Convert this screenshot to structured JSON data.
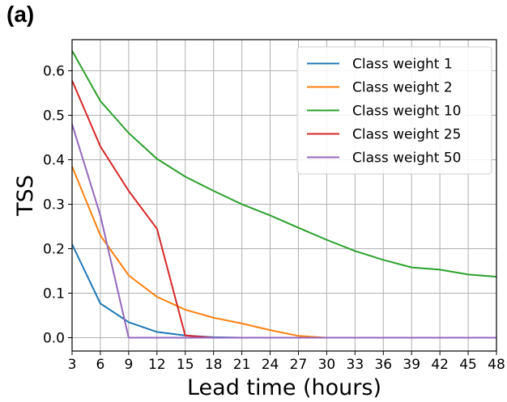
{
  "panel_label": "(a)",
  "chart_data": {
    "type": "line",
    "xlabel": "Lead time (hours)",
    "ylabel": "TSS",
    "x": [
      3,
      6,
      9,
      12,
      15,
      18,
      21,
      24,
      27,
      30,
      33,
      36,
      39,
      42,
      45,
      48
    ],
    "xlim": [
      3,
      48
    ],
    "ylim": [
      -0.03,
      0.67
    ],
    "xticks": [
      3,
      6,
      9,
      12,
      15,
      18,
      21,
      24,
      27,
      30,
      33,
      36,
      39,
      42,
      45,
      48
    ],
    "yticks": [
      0.0,
      0.1,
      0.2,
      0.3,
      0.4,
      0.5,
      0.6
    ],
    "ytick_labels": [
      "0.0",
      "0.1",
      "0.2",
      "0.3",
      "0.4",
      "0.5",
      "0.6"
    ],
    "grid": true,
    "legend_position": "top-right",
    "series": [
      {
        "name": "Class weight 1",
        "color": "#1f77b4",
        "values": [
          0.21,
          0.077,
          0.035,
          0.013,
          0.005,
          0.001,
          0,
          0,
          0,
          0,
          0,
          0,
          0,
          0,
          0,
          0
        ]
      },
      {
        "name": "Class weight 2",
        "color": "#ff7f0e",
        "values": [
          0.385,
          0.23,
          0.14,
          0.092,
          0.063,
          0.045,
          0.032,
          0.017,
          0.004,
          0,
          0,
          0,
          0,
          0,
          0,
          0
        ]
      },
      {
        "name": "Class weight 10",
        "color": "#2ca02c",
        "values": [
          0.645,
          0.532,
          0.46,
          0.402,
          0.362,
          0.33,
          0.3,
          0.275,
          0.247,
          0.22,
          0.195,
          0.175,
          0.158,
          0.153,
          0.142,
          0.137
        ]
      },
      {
        "name": "Class weight 25",
        "color": "#d62728",
        "values": [
          0.578,
          0.43,
          0.33,
          0.245,
          0.005,
          0,
          0,
          0,
          0,
          0,
          0,
          0,
          0,
          0,
          0,
          0
        ]
      },
      {
        "name": "Class weight 50",
        "color": "#9467bd",
        "values": [
          0.48,
          0.275,
          0,
          0,
          0,
          0,
          0,
          0,
          0,
          0,
          0,
          0,
          0,
          0,
          0,
          0
        ]
      }
    ]
  }
}
